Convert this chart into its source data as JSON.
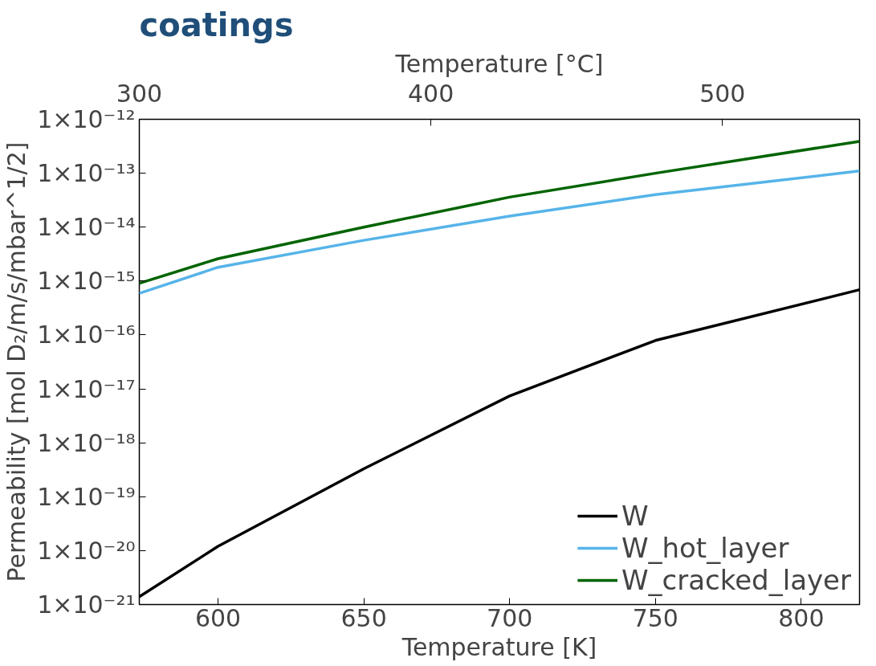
{
  "chart_data": {
    "type": "line",
    "title": "coatings",
    "xlabel": "Temperature [K]",
    "x2label": "Temperature [°C]",
    "ylabel": "Permeability [mol D₂/m/s/mbar^1/2]",
    "x": [
      573,
      600,
      650,
      700,
      750,
      820
    ],
    "series": [
      {
        "name": "W",
        "color": "#000000",
        "values": [
          1.4e-21,
          1.2e-20,
          3.3e-19,
          7.4e-18,
          7.9e-17,
          6.9e-16
        ]
      },
      {
        "name": "W_hot_layer",
        "color": "#56b4e9",
        "values": [
          5.9e-16,
          1.8e-15,
          5.7e-15,
          1.6e-14,
          4e-14,
          1.1e-13
        ]
      },
      {
        "name": "W_cracked_layer",
        "color": "#006400",
        "values": [
          9.1e-16,
          2.6e-15,
          1e-14,
          3.6e-14,
          1e-13,
          3.9e-13
        ]
      }
    ],
    "xlim": [
      573,
      820
    ],
    "xticks": [
      600,
      650,
      700,
      750,
      800
    ],
    "x2lim": [
      300,
      547
    ],
    "x2ticks": [
      300,
      400,
      500
    ],
    "log": "y",
    "ylim": [
      1e-21,
      1e-12
    ],
    "yticks": [
      {
        "value": 1e-21,
        "label": "1×10⁻²¹"
      },
      {
        "value": 1e-20,
        "label": "1×10⁻²⁰"
      },
      {
        "value": 1e-19,
        "label": "1×10⁻¹⁹"
      },
      {
        "value": 1e-18,
        "label": "1×10⁻¹⁸"
      },
      {
        "value": 1e-17,
        "label": "1×10⁻¹⁷"
      },
      {
        "value": 1e-16,
        "label": "1×10⁻¹⁶"
      },
      {
        "value": 1e-15,
        "label": "1×10⁻¹⁵"
      },
      {
        "value": 1e-14,
        "label": "1×10⁻¹⁴"
      },
      {
        "value": 1e-13,
        "label": "1×10⁻¹³"
      },
      {
        "value": 1e-12,
        "label": "1×10⁻¹²"
      }
    ],
    "legend": "bottom right",
    "grid": false,
    "line_style": "solid"
  }
}
